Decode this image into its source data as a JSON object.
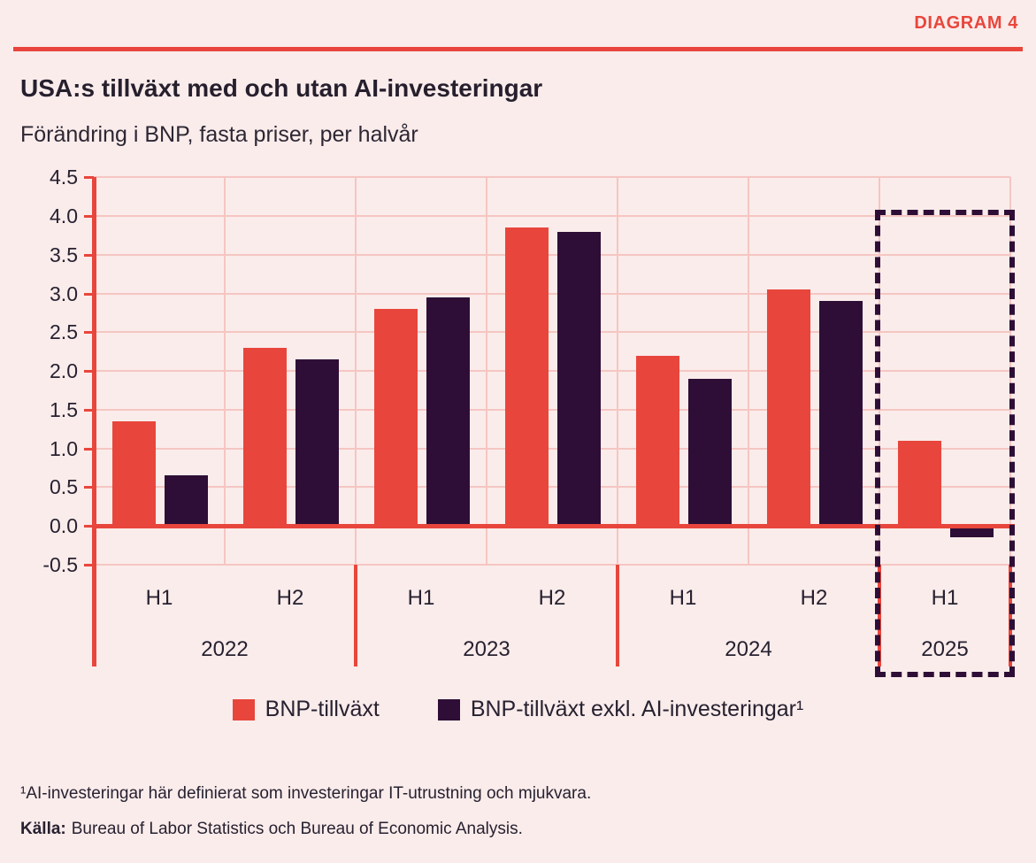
{
  "page": {
    "diagram_label": "DIAGRAM 4",
    "title": "USA:s tillväxt med och utan AI-investeringar",
    "subtitle": "Förändring i BNP, fasta priser, per halvår",
    "footnote": "¹AI-investeringar här definierat som investeringar IT-utrustning och mjukvara.",
    "source_label": "Källa:",
    "source_text": "Bureau of Labor Statistics och Bureau of Economic Analysis."
  },
  "colors": {
    "accent_red": "#e8463c",
    "dark_purple": "#2e0e36",
    "background": "#faeceb",
    "gridline": "#f5c6c2",
    "text": "#272130"
  },
  "chart_data": {
    "type": "bar",
    "title": "USA:s tillväxt med och utan AI-investeringar",
    "subtitle": "Förändring i BNP, fasta priser, per halvår",
    "categories": [
      "2022 H1",
      "2022 H2",
      "2023 H1",
      "2023 H2",
      "2024 H1",
      "2024 H2",
      "2025 H1"
    ],
    "half_labels": [
      "H1",
      "H2",
      "H1",
      "H2",
      "H1",
      "H2",
      "H1"
    ],
    "year_groups": [
      {
        "label": "2022",
        "span": 2
      },
      {
        "label": "2023",
        "span": 2
      },
      {
        "label": "2024",
        "span": 2
      },
      {
        "label": "2025",
        "span": 1
      }
    ],
    "series": [
      {
        "name": "BNP-tillväxt",
        "color": "#e8463c",
        "values": [
          1.35,
          2.3,
          2.8,
          3.85,
          2.2,
          3.05,
          1.1
        ]
      },
      {
        "name": "BNP-tillväxt exkl. AI-investeringar¹",
        "color": "#2e0e36",
        "values": [
          0.65,
          2.15,
          2.95,
          3.8,
          1.9,
          2.9,
          -0.1
        ]
      }
    ],
    "ylim": [
      -0.5,
      4.5
    ],
    "ytick_step": 0.5,
    "grid": true,
    "legend_position": "bottom",
    "highlight": {
      "category_index": 6,
      "label": "2025 H1",
      "style": "dashed-box"
    }
  }
}
